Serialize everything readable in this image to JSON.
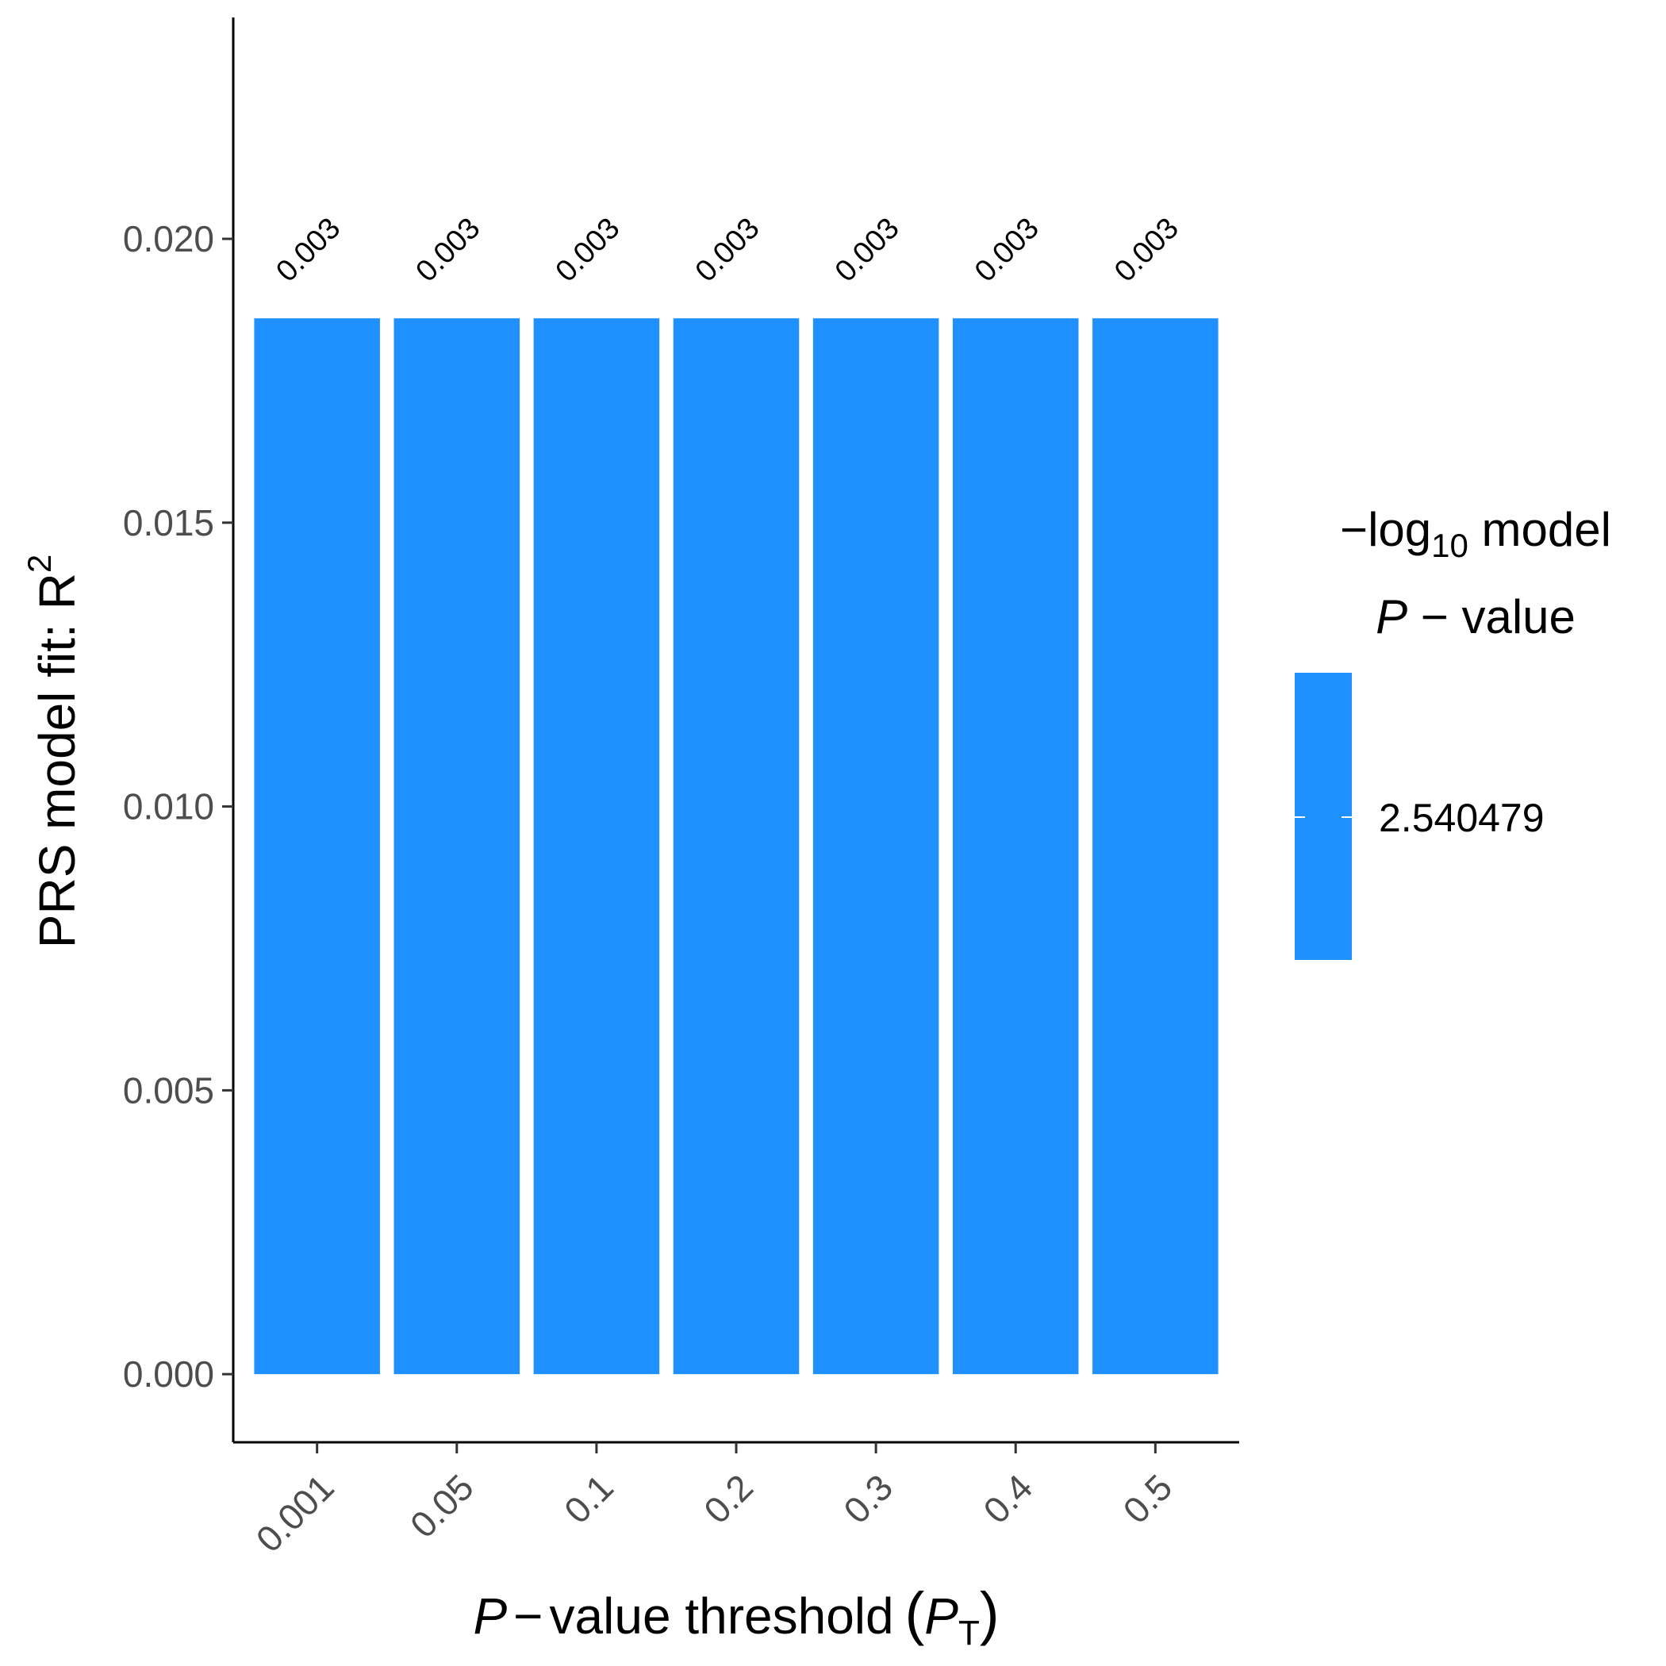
{
  "chart_data": {
    "type": "bar",
    "categories": [
      "0.001",
      "0.05",
      "0.1",
      "0.2",
      "0.3",
      "0.4",
      "0.5"
    ],
    "values": [
      0.0186,
      0.0186,
      0.0186,
      0.0186,
      0.0186,
      0.0186,
      0.0186
    ],
    "bar_labels": [
      "0.003",
      "0.003",
      "0.003",
      "0.003",
      "0.003",
      "0.003",
      "0.003"
    ],
    "fill_values": [
      2.540479,
      2.540479,
      2.540479,
      2.540479,
      2.540479,
      2.540479,
      2.540479
    ],
    "ylim": [
      -0.0012,
      0.0239
    ],
    "yticks": [
      0.0,
      0.005,
      0.01,
      0.015,
      0.02
    ],
    "ytick_labels": [
      "0.000",
      "0.005",
      "0.010",
      "0.015",
      "0.020"
    ],
    "ylabel": {
      "text": "PRS model fit:  R",
      "sup": "2"
    },
    "xlabel": {
      "italic_p": "P",
      "dash": "−",
      "text": "value threshold",
      "open": "(",
      "italic_pt": "P",
      "sub": "T",
      "close": ")"
    },
    "legend": {
      "position": "right",
      "title_line1_prefix": "−log",
      "title_line1_sub": "10",
      "title_line1_suffix": " model",
      "title_line2_italic": "P",
      "title_line2_rest": " − value",
      "label": "2.540479",
      "color": "#1E90FF"
    },
    "bar_color": "#1E90FF",
    "grid": false
  }
}
